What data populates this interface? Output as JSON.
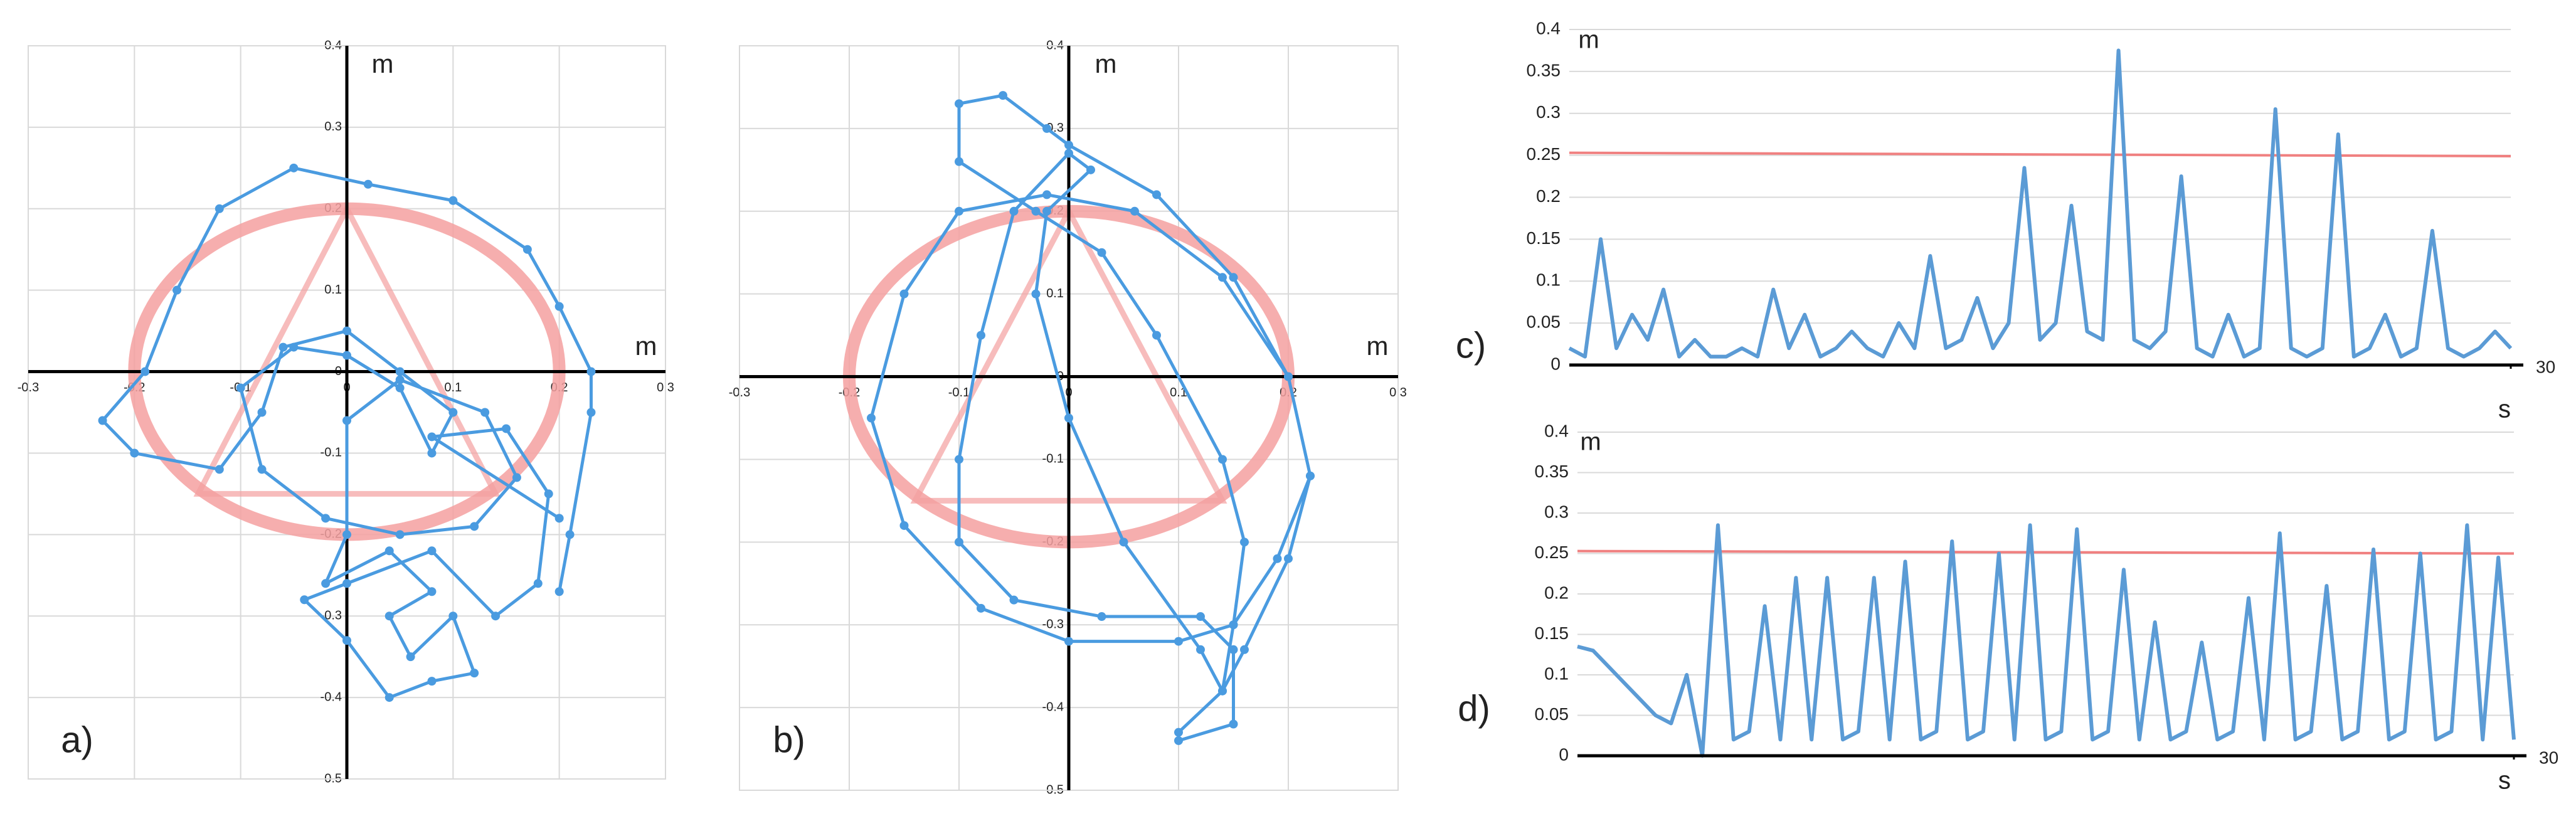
{
  "chart_data": [
    {
      "type": "scatter",
      "label": "a)",
      "xlabel": "m",
      "ylabel": "m",
      "xlim": [
        -0.3,
        0.3
      ],
      "ylim": [
        -0.5,
        0.4
      ],
      "xticks": [
        -0.3,
        -0.2,
        -0.1,
        0,
        0.1,
        0.2,
        0.3
      ],
      "yticks": [
        0.4,
        0.3,
        0.2,
        0.1,
        0,
        -0.1,
        -0.2,
        -0.3,
        -0.4,
        -0.5
      ],
      "grid": true,
      "circle_radius": 0.2,
      "triangle_x": [
        0,
        -0.14,
        0.14
      ],
      "triangle_y": [
        0.2,
        -0.15,
        -0.15
      ],
      "reference_color": "#f4a0a0",
      "series": [
        {
          "color": "#4a9be0",
          "x": [
            0.2,
            0.21,
            0.23,
            0.23,
            0.2,
            0.17,
            0.1,
            0.02,
            -0.05,
            -0.12,
            -0.16,
            -0.19,
            -0.23,
            -0.2,
            -0.12,
            -0.08,
            -0.06,
            0.0,
            0.05,
            0.1,
            0.08,
            0.05,
            0.0,
            -0.05,
            -0.1,
            -0.08,
            -0.02,
            0.05,
            0.12,
            0.16,
            0.13,
            0.05,
            0.0,
            0.0,
            -0.02,
            0.04,
            0.08,
            0.04,
            0.06,
            0.1,
            0.12,
            0.08,
            0.04,
            0.0,
            -0.04,
            0.0,
            0.08,
            0.14,
            0.18,
            0.19,
            0.15,
            0.08,
            0.2
          ],
          "y": [
            -0.27,
            -0.2,
            -0.05,
            0.0,
            0.08,
            0.15,
            0.21,
            0.23,
            0.25,
            0.2,
            0.1,
            0.0,
            -0.06,
            -0.1,
            -0.12,
            -0.05,
            0.03,
            0.05,
            0.0,
            -0.05,
            -0.1,
            -0.02,
            0.02,
            0.03,
            -0.02,
            -0.12,
            -0.18,
            -0.2,
            -0.19,
            -0.13,
            -0.05,
            -0.01,
            -0.06,
            -0.2,
            -0.26,
            -0.22,
            -0.27,
            -0.3,
            -0.35,
            -0.3,
            -0.37,
            -0.38,
            -0.4,
            -0.33,
            -0.28,
            -0.26,
            -0.22,
            -0.3,
            -0.26,
            -0.15,
            -0.07,
            -0.08,
            -0.18
          ]
        }
      ]
    },
    {
      "type": "scatter",
      "label": "b)",
      "xlabel": "m",
      "ylabel": "m",
      "xlim": [
        -0.3,
        0.3
      ],
      "ylim": [
        -0.5,
        0.4
      ],
      "xticks": [
        -0.3,
        -0.2,
        -0.1,
        0,
        0.1,
        0.2,
        0.3
      ],
      "yticks": [
        0.4,
        0.3,
        0.2,
        0.1,
        0,
        -0.1,
        -0.2,
        -0.3,
        -0.4,
        -0.5
      ],
      "grid": true,
      "circle_radius": 0.2,
      "triangle_x": [
        0,
        -0.14,
        0.14
      ],
      "triangle_y": [
        0.2,
        -0.15,
        -0.15
      ],
      "reference_color": "#f4a0a0",
      "series": [
        {
          "color": "#4a9be0",
          "x": [
            0.1,
            0.14,
            0.15,
            0.19,
            0.22,
            0.2,
            0.14,
            0.06,
            -0.02,
            -0.1,
            -0.15,
            -0.18,
            -0.15,
            -0.08,
            0.0,
            0.1,
            0.15,
            0.16,
            0.14,
            0.08,
            0.03,
            -0.03,
            -0.1,
            -0.1,
            -0.06,
            -0.02,
            0.0,
            0.08,
            0.15,
            0.2,
            0.22,
            0.2,
            0.16,
            0.14,
            0.12,
            0.05,
            0.0,
            -0.03,
            -0.02,
            0.02,
            0.0,
            -0.05,
            -0.08,
            -0.1,
            -0.1,
            -0.05,
            0.03,
            0.12,
            0.15,
            0.15,
            0.1
          ],
          "y": [
            -0.43,
            -0.38,
            -0.3,
            -0.22,
            -0.12,
            0.0,
            0.12,
            0.2,
            0.22,
            0.2,
            0.1,
            -0.05,
            -0.18,
            -0.28,
            -0.32,
            -0.32,
            -0.3,
            -0.2,
            -0.1,
            0.05,
            0.15,
            0.2,
            0.26,
            0.33,
            0.34,
            0.3,
            0.28,
            0.22,
            0.12,
            0.0,
            -0.12,
            -0.22,
            -0.33,
            -0.38,
            -0.33,
            -0.2,
            -0.05,
            0.1,
            0.2,
            0.25,
            0.27,
            0.2,
            0.05,
            -0.1,
            -0.2,
            -0.27,
            -0.29,
            -0.29,
            -0.33,
            -0.42,
            -0.44
          ]
        }
      ]
    },
    {
      "type": "line",
      "label": "c)",
      "xlabel": "s",
      "ylabel": "m",
      "xlim": [
        0,
        30
      ],
      "ylim": [
        0,
        0.4
      ],
      "xticks": [
        30
      ],
      "yticks": [
        0,
        0.05,
        0.1,
        0.15,
        0.2,
        0.25,
        0.3,
        0.35,
        0.4
      ],
      "grid": true,
      "x": [
        0,
        0.5,
        1,
        1.5,
        2,
        2.5,
        3,
        3.5,
        4,
        4.5,
        5,
        5.5,
        6,
        6.5,
        7,
        7.5,
        8,
        8.5,
        9,
        9.5,
        10,
        10.5,
        11,
        11.5,
        12,
        12.5,
        13,
        13.5,
        14,
        14.5,
        15,
        15.5,
        16,
        16.5,
        17,
        17.5,
        18,
        18.5,
        19,
        19.5,
        20,
        20.5,
        21,
        21.5,
        22,
        22.5,
        23,
        23.5,
        24,
        24.5,
        25,
        25.5,
        26,
        26.5,
        27,
        27.5,
        28,
        28.5,
        29,
        29.5,
        30
      ],
      "series": [
        {
          "color": "#5b9bd5",
          "values": [
            0.02,
            0.01,
            0.15,
            0.02,
            0.06,
            0.03,
            0.09,
            0.01,
            0.03,
            0.01,
            0.01,
            0.02,
            0.01,
            0.09,
            0.02,
            0.06,
            0.01,
            0.02,
            0.04,
            0.02,
            0.01,
            0.05,
            0.02,
            0.13,
            0.02,
            0.03,
            0.08,
            0.02,
            0.05,
            0.235,
            0.03,
            0.05,
            0.19,
            0.04,
            0.03,
            0.375,
            0.03,
            0.02,
            0.04,
            0.225,
            0.02,
            0.01,
            0.06,
            0.01,
            0.02,
            0.305,
            0.02,
            0.01,
            0.02,
            0.275,
            0.01,
            0.02,
            0.06,
            0.01,
            0.02,
            0.16,
            0.02,
            0.01,
            0.02,
            0.04,
            0.02
          ]
        }
      ],
      "threshold": {
        "x": [
          0,
          30
        ],
        "values": [
          0.253,
          0.249
        ],
        "color": "#f08080"
      }
    },
    {
      "type": "line",
      "label": "d)",
      "xlabel": "s",
      "ylabel": "m",
      "xlim": [
        0,
        30
      ],
      "ylim": [
        0,
        0.4
      ],
      "xticks": [
        30
      ],
      "yticks": [
        0,
        0.05,
        0.1,
        0.15,
        0.2,
        0.25,
        0.3,
        0.35,
        0.4
      ],
      "grid": true,
      "x": [
        0,
        0.5,
        1,
        1.5,
        2,
        2.5,
        3,
        3.5,
        4,
        4.5,
        5,
        5.5,
        6,
        6.5,
        7,
        7.5,
        8,
        8.5,
        9,
        9.5,
        10,
        10.5,
        11,
        11.5,
        12,
        12.5,
        13,
        13.5,
        14,
        14.5,
        15,
        15.5,
        16,
        16.5,
        17,
        17.5,
        18,
        18.5,
        19,
        19.5,
        20,
        20.5,
        21,
        21.5,
        22,
        22.5,
        23,
        23.5,
        24,
        24.5,
        25,
        25.5,
        26,
        26.5,
        27,
        27.5,
        28,
        28.5,
        29,
        29.5,
        30
      ],
      "series": [
        {
          "color": "#5b9bd5",
          "values": [
            0.135,
            0.13,
            0.11,
            0.09,
            0.07,
            0.05,
            0.04,
            0.1,
            0.0,
            0.285,
            0.02,
            0.03,
            0.185,
            0.02,
            0.22,
            0.02,
            0.22,
            0.02,
            0.03,
            0.22,
            0.02,
            0.24,
            0.02,
            0.03,
            0.265,
            0.02,
            0.03,
            0.25,
            0.02,
            0.285,
            0.02,
            0.03,
            0.28,
            0.02,
            0.03,
            0.23,
            0.02,
            0.165,
            0.02,
            0.03,
            0.14,
            0.02,
            0.03,
            0.195,
            0.02,
            0.275,
            0.02,
            0.03,
            0.21,
            0.02,
            0.03,
            0.255,
            0.02,
            0.03,
            0.25,
            0.02,
            0.03,
            0.285,
            0.02,
            0.245,
            0.02
          ]
        }
      ],
      "threshold": {
        "x": [
          0,
          30
        ],
        "values": [
          0.253,
          0.25
        ],
        "color": "#f08080"
      }
    }
  ]
}
